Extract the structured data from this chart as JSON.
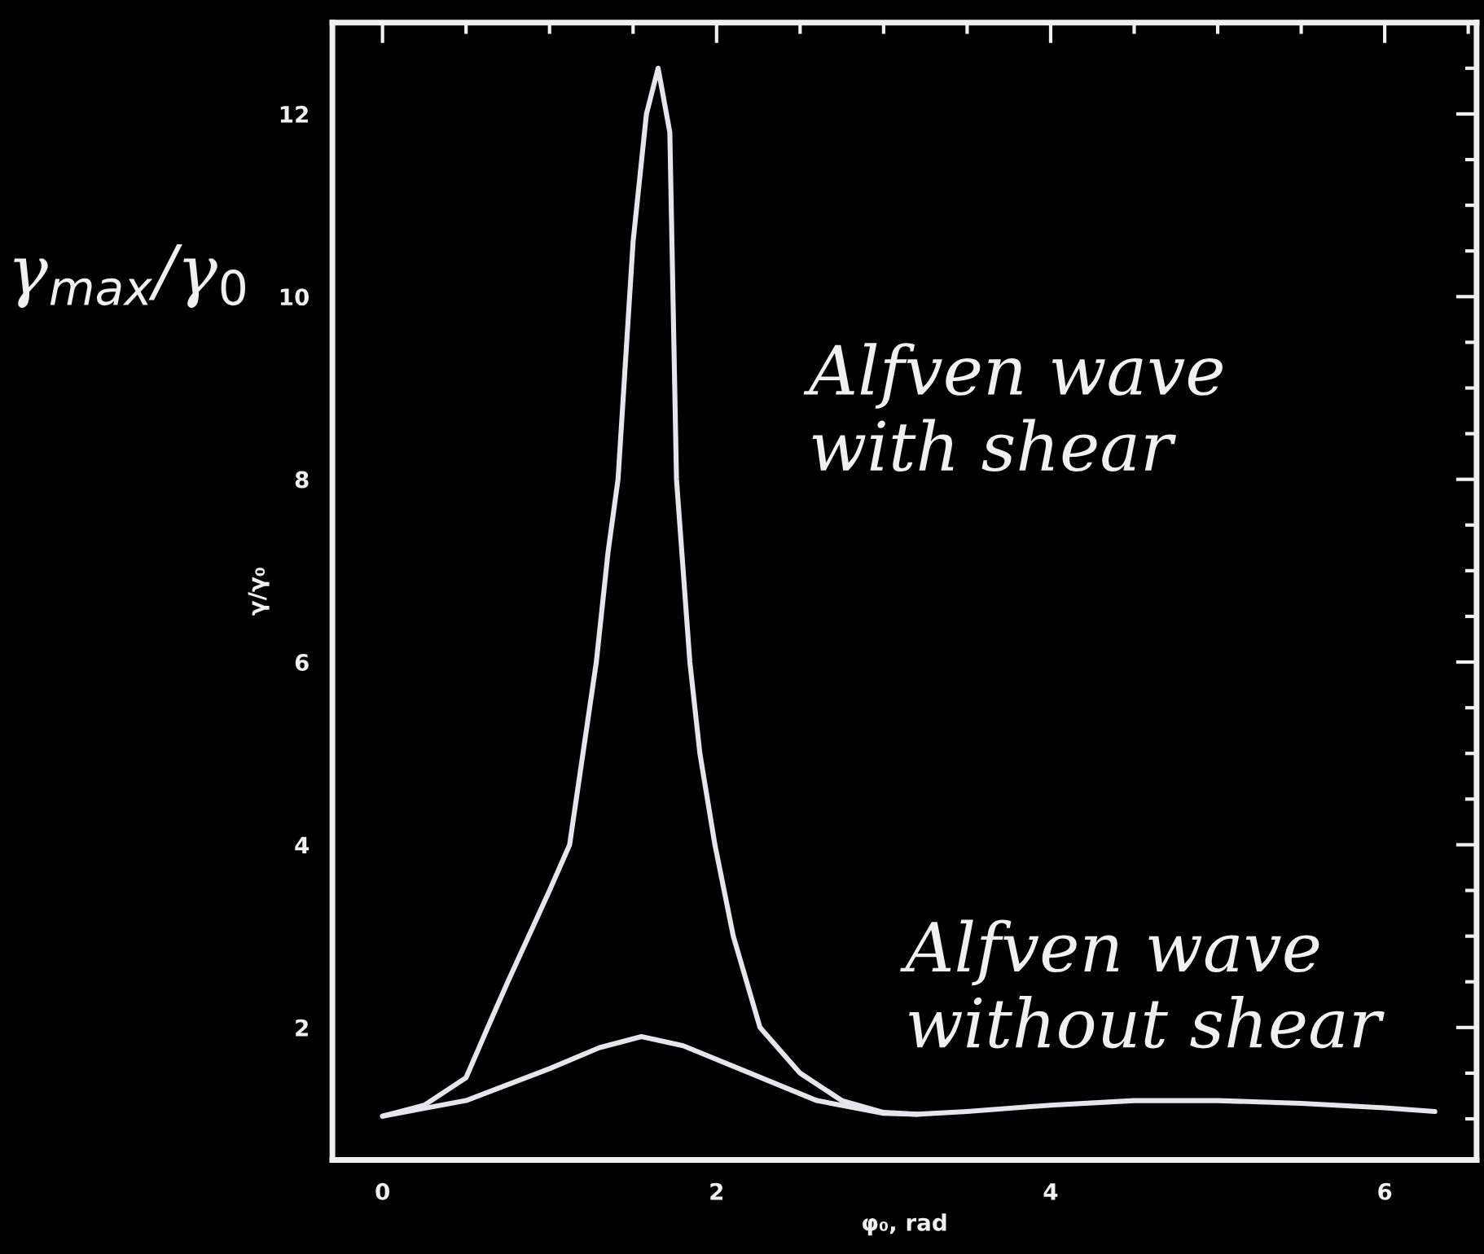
{
  "chart_data": {
    "type": "line",
    "xlabel": "φ₀, rad",
    "ylabel": "γ/γ₀",
    "xlim": [
      -0.3,
      6.55
    ],
    "ylim": [
      0.55,
      13.0
    ],
    "xticks": [
      0,
      2,
      4,
      6
    ],
    "yticks": [
      2,
      4,
      6,
      8,
      10,
      12
    ],
    "grid": false,
    "marker": "none",
    "line_style": "solid",
    "series": [
      {
        "color": "#e8e4ec",
        "x": [
          0,
          0.25,
          0.5,
          0.63,
          0.75,
          0.9,
          1.0,
          1.12,
          1.2,
          1.28,
          1.35,
          1.41,
          1.5,
          1.58,
          1.65,
          1.72,
          1.76,
          1.8,
          1.84,
          1.9,
          1.99,
          2.1,
          2.26,
          2.5,
          2.75,
          3.0,
          3.2,
          3.5,
          4.0,
          4.5,
          5.0,
          5.5,
          6.0,
          6.3
        ],
        "values": [
          1.03,
          1.15,
          1.45,
          2.0,
          2.5,
          3.1,
          3.5,
          4.0,
          5.0,
          6.0,
          7.2,
          8.0,
          10.6,
          12.0,
          12.5,
          11.8,
          8.0,
          7.0,
          6.0,
          5.0,
          4.0,
          3.0,
          2.0,
          1.5,
          1.2,
          1.07,
          1.05,
          1.08,
          1.15,
          1.2,
          1.2,
          1.17,
          1.12,
          1.08
        ]
      },
      {
        "color": "#e8e4ec",
        "x": [
          0,
          0.5,
          1.0,
          1.3,
          1.55,
          1.8,
          2.2,
          2.6,
          3.0,
          3.2
        ],
        "values": [
          1.03,
          1.2,
          1.55,
          1.78,
          1.9,
          1.8,
          1.5,
          1.2,
          1.06,
          1.05
        ]
      }
    ],
    "annotations": [
      "γ$_{max}$/γ$_{0}$",
      "Alfven wave\nwith shear",
      "Alfven wave\nwithout shear"
    ]
  }
}
